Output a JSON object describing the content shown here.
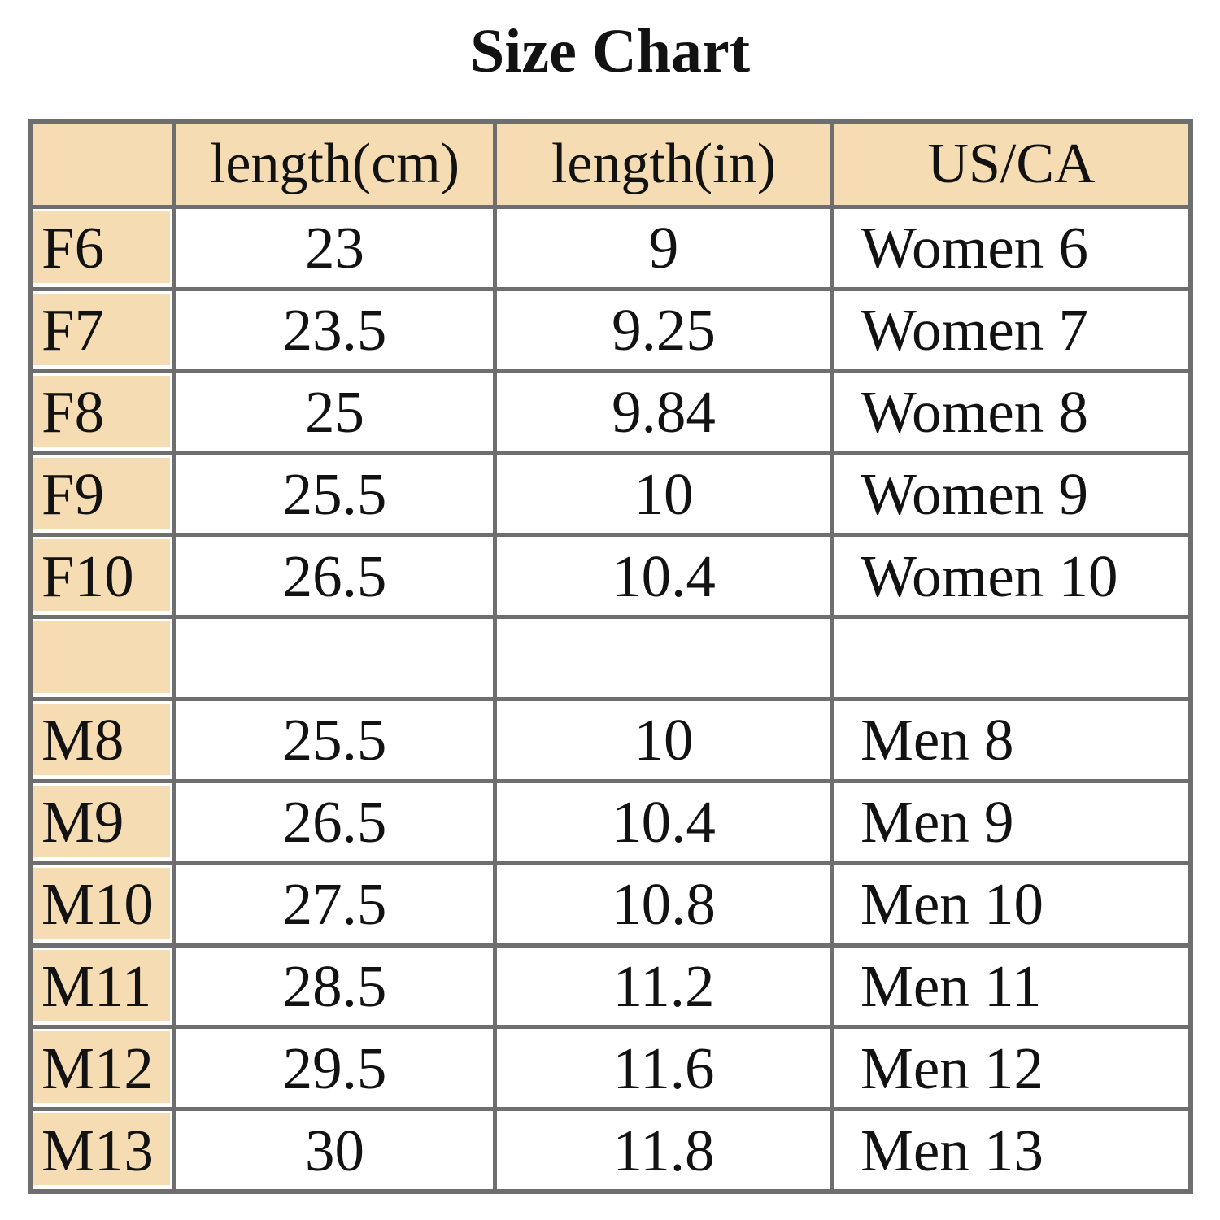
{
  "title": "Size Chart",
  "colors": {
    "peach_fill": "#F5DCB2",
    "grid_line": "#6E6E6E",
    "text": "#121212",
    "background": "#FFFFFF"
  },
  "table": {
    "columns": [
      "",
      "length(cm)",
      "length(in)",
      "US/CA"
    ],
    "rows": [
      {
        "label": "F6",
        "cm": "23",
        "in": "9",
        "us": "Women 6"
      },
      {
        "label": "F7",
        "cm": "23.5",
        "in": "9.25",
        "us": "Women 7"
      },
      {
        "label": "F8",
        "cm": "25",
        "in": "9.84",
        "us": "Women 8"
      },
      {
        "label": "F9",
        "cm": "25.5",
        "in": "10",
        "us": "Women 9"
      },
      {
        "label": "F10",
        "cm": "26.5",
        "in": "10.4",
        "us": "Women 10"
      },
      {
        "label": "",
        "cm": "",
        "in": "",
        "us": ""
      },
      {
        "label": "M8",
        "cm": "25.5",
        "in": "10",
        "us": "Men 8"
      },
      {
        "label": "M9",
        "cm": "26.5",
        "in": "10.4",
        "us": "Men 9"
      },
      {
        "label": "M10",
        "cm": "27.5",
        "in": "10.8",
        "us": "Men 10"
      },
      {
        "label": "M11",
        "cm": "28.5",
        "in": "11.2",
        "us": "Men 11"
      },
      {
        "label": "M12",
        "cm": "29.5",
        "in": "11.6",
        "us": "Men 12"
      },
      {
        "label": "M13",
        "cm": "30",
        "in": "11.8",
        "us": "Men 13"
      }
    ]
  },
  "chart_data": {
    "type": "table",
    "title": "Size Chart",
    "columns": [
      "size_code",
      "length_cm",
      "length_in",
      "us_ca_size"
    ],
    "rows": [
      [
        "F6",
        23,
        9,
        "Women 6"
      ],
      [
        "F7",
        23.5,
        9.25,
        "Women 7"
      ],
      [
        "F8",
        25,
        9.84,
        "Women 8"
      ],
      [
        "F9",
        25.5,
        10,
        "Women 9"
      ],
      [
        "F10",
        26.5,
        10.4,
        "Women 10"
      ],
      [
        "M8",
        25.5,
        10,
        "Men 8"
      ],
      [
        "M9",
        26.5,
        10.4,
        "Men 9"
      ],
      [
        "M10",
        27.5,
        10.8,
        "Men 10"
      ],
      [
        "M11",
        28.5,
        11.2,
        "Men 11"
      ],
      [
        "M12",
        29.5,
        11.6,
        "Men 12"
      ],
      [
        "M13",
        30,
        11.8,
        "Men 13"
      ]
    ],
    "layout_hints": {
      "blank_separator_row_after": "F10",
      "header_row_bg": "#F5DCB2",
      "label_column_bg": "#F5DCB2",
      "grid": "on"
    }
  }
}
